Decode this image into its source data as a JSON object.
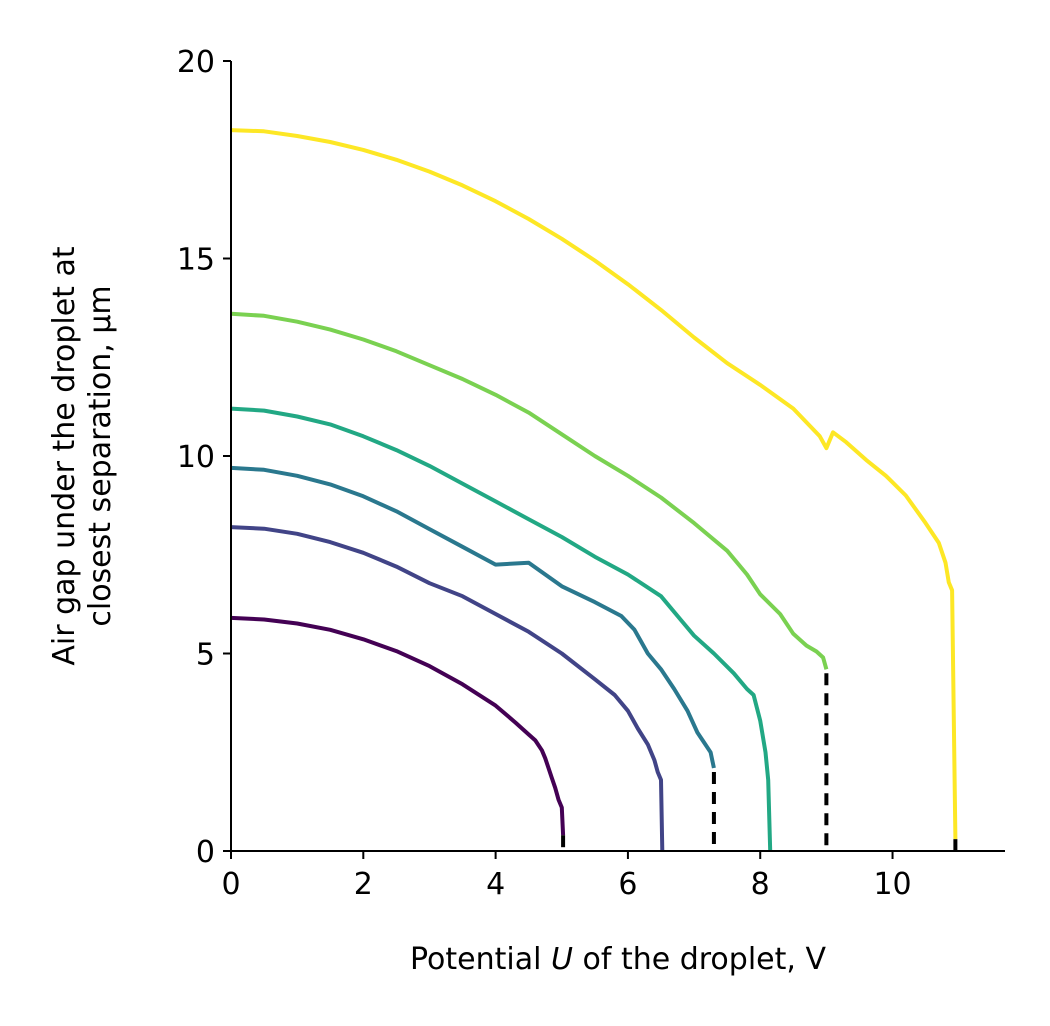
{
  "chart_data": {
    "type": "line",
    "xlabel": "Potential U of the droplet, V",
    "xlabel_parts": [
      "Potential ",
      "U",
      " of the droplet, V"
    ],
    "ylabel_lines": [
      "Air gap under the droplet at",
      "closest separation, μm"
    ],
    "xlim": [
      0,
      11.7
    ],
    "ylim": [
      0,
      20
    ],
    "xticks": [
      "0",
      "2",
      "4",
      "6",
      "8",
      "10"
    ],
    "yticks": [
      "0",
      "5",
      "10",
      "15",
      "20"
    ],
    "series": [
      {
        "color": "#440154",
        "points": [
          [
            0,
            5.9
          ],
          [
            0.5,
            5.86
          ],
          [
            1,
            5.76
          ],
          [
            1.5,
            5.6
          ],
          [
            2,
            5.36
          ],
          [
            2.5,
            5.06
          ],
          [
            3,
            4.68
          ],
          [
            3.5,
            4.22
          ],
          [
            4,
            3.68
          ],
          [
            4.3,
            3.25
          ],
          [
            4.5,
            2.95
          ],
          [
            4.6,
            2.8
          ],
          [
            4.7,
            2.55
          ],
          [
            4.75,
            2.35
          ],
          [
            4.8,
            2.1
          ],
          [
            4.85,
            1.85
          ],
          [
            4.9,
            1.6
          ],
          [
            4.95,
            1.3
          ],
          [
            5.0,
            1.1
          ],
          [
            5.02,
            0.4
          ]
        ]
      },
      {
        "color": "#414487",
        "points": [
          [
            0,
            8.2
          ],
          [
            0.5,
            8.16
          ],
          [
            1,
            8.03
          ],
          [
            1.5,
            7.82
          ],
          [
            2,
            7.55
          ],
          [
            2.5,
            7.2
          ],
          [
            3,
            6.78
          ],
          [
            3.5,
            6.45
          ],
          [
            4,
            6.0
          ],
          [
            4.5,
            5.55
          ],
          [
            5,
            5.0
          ],
          [
            5.5,
            4.35
          ],
          [
            5.8,
            3.95
          ],
          [
            6.0,
            3.55
          ],
          [
            6.15,
            3.1
          ],
          [
            6.3,
            2.7
          ],
          [
            6.4,
            2.3
          ],
          [
            6.45,
            2.0
          ],
          [
            6.5,
            1.8
          ],
          [
            6.52,
            0
          ]
        ]
      },
      {
        "color": "#2a788e",
        "points": [
          [
            0,
            9.7
          ],
          [
            0.5,
            9.65
          ],
          [
            1,
            9.5
          ],
          [
            1.5,
            9.28
          ],
          [
            2,
            8.98
          ],
          [
            2.5,
            8.6
          ],
          [
            3,
            8.15
          ],
          [
            3.5,
            7.7
          ],
          [
            4,
            7.25
          ],
          [
            4.5,
            7.3
          ],
          [
            5,
            6.7
          ],
          [
            5.5,
            6.3
          ],
          [
            5.9,
            5.95
          ],
          [
            6.1,
            5.6
          ],
          [
            6.3,
            5.0
          ],
          [
            6.5,
            4.6
          ],
          [
            6.7,
            4.1
          ],
          [
            6.9,
            3.55
          ],
          [
            7.05,
            3.0
          ],
          [
            7.15,
            2.75
          ],
          [
            7.25,
            2.5
          ],
          [
            7.3,
            2.1
          ]
        ]
      },
      {
        "color": "#22a884",
        "points": [
          [
            0,
            11.2
          ],
          [
            0.5,
            11.15
          ],
          [
            1,
            11.0
          ],
          [
            1.5,
            10.8
          ],
          [
            2,
            10.5
          ],
          [
            2.5,
            10.15
          ],
          [
            3,
            9.75
          ],
          [
            3.5,
            9.3
          ],
          [
            4,
            8.85
          ],
          [
            4.5,
            8.4
          ],
          [
            5,
            7.95
          ],
          [
            5.5,
            7.45
          ],
          [
            6,
            7.0
          ],
          [
            6.5,
            6.45
          ],
          [
            6.8,
            5.85
          ],
          [
            7,
            5.45
          ],
          [
            7.3,
            5.0
          ],
          [
            7.6,
            4.5
          ],
          [
            7.8,
            4.1
          ],
          [
            7.9,
            3.95
          ],
          [
            8.0,
            3.3
          ],
          [
            8.08,
            2.5
          ],
          [
            8.12,
            1.8
          ],
          [
            8.15,
            0
          ]
        ]
      },
      {
        "color": "#7ad151",
        "points": [
          [
            0,
            13.6
          ],
          [
            0.5,
            13.55
          ],
          [
            1,
            13.4
          ],
          [
            1.5,
            13.2
          ],
          [
            2,
            12.95
          ],
          [
            2.5,
            12.65
          ],
          [
            3,
            12.3
          ],
          [
            3.5,
            11.95
          ],
          [
            4,
            11.55
          ],
          [
            4.5,
            11.1
          ],
          [
            5,
            10.55
          ],
          [
            5.5,
            10.0
          ],
          [
            6,
            9.5
          ],
          [
            6.5,
            8.95
          ],
          [
            7,
            8.3
          ],
          [
            7.5,
            7.6
          ],
          [
            7.8,
            7.0
          ],
          [
            8.0,
            6.5
          ],
          [
            8.3,
            6.0
          ],
          [
            8.5,
            5.5
          ],
          [
            8.7,
            5.2
          ],
          [
            8.85,
            5.05
          ],
          [
            8.95,
            4.9
          ],
          [
            9.0,
            4.6
          ]
        ]
      },
      {
        "color": "#fde725",
        "points": [
          [
            0,
            18.25
          ],
          [
            0.5,
            18.22
          ],
          [
            1,
            18.1
          ],
          [
            1.5,
            17.95
          ],
          [
            2,
            17.75
          ],
          [
            2.5,
            17.5
          ],
          [
            3,
            17.2
          ],
          [
            3.5,
            16.85
          ],
          [
            4,
            16.45
          ],
          [
            4.5,
            16.0
          ],
          [
            5,
            15.5
          ],
          [
            5.5,
            14.95
          ],
          [
            6,
            14.35
          ],
          [
            6.5,
            13.7
          ],
          [
            7,
            13.0
          ],
          [
            7.5,
            12.35
          ],
          [
            8,
            11.8
          ],
          [
            8.5,
            11.2
          ],
          [
            8.9,
            10.5
          ],
          [
            9.0,
            10.2
          ],
          [
            9.1,
            10.6
          ],
          [
            9.3,
            10.35
          ],
          [
            9.6,
            9.9
          ],
          [
            9.9,
            9.5
          ],
          [
            10.2,
            9.0
          ],
          [
            10.5,
            8.3
          ],
          [
            10.7,
            7.8
          ],
          [
            10.8,
            7.3
          ],
          [
            10.85,
            6.8
          ],
          [
            10.9,
            6.6
          ],
          [
            10.95,
            0.3
          ]
        ]
      }
    ],
    "cutoffs": [
      {
        "x": 5.02,
        "y_top": 0.4
      },
      {
        "x": 7.3,
        "y_top": 2.0
      },
      {
        "x": 9.0,
        "y_top": 4.5
      },
      {
        "x": 10.95,
        "y_top": 0.3
      }
    ]
  }
}
